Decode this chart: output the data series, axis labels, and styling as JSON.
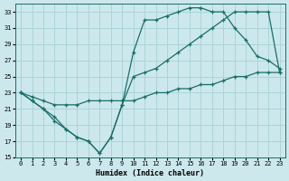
{
  "bg_color": "#cce8ec",
  "line_color": "#1a6e68",
  "grid_color": "#aad4d8",
  "xlabel": "Humidex (Indice chaleur)",
  "xlim": [
    -0.5,
    23.5
  ],
  "ylim": [
    15,
    34
  ],
  "xticks": [
    0,
    1,
    2,
    3,
    4,
    5,
    6,
    7,
    8,
    9,
    10,
    11,
    12,
    13,
    14,
    15,
    16,
    17,
    18,
    19,
    20,
    21,
    22,
    23
  ],
  "yticks": [
    15,
    17,
    19,
    21,
    23,
    25,
    27,
    29,
    31,
    33
  ],
  "curve1_x": [
    0,
    1,
    2,
    3,
    4,
    5,
    6,
    7,
    8,
    9,
    10,
    11,
    12,
    13,
    14,
    15,
    16,
    17,
    18,
    19,
    20,
    21,
    22,
    23
  ],
  "curve1_y": [
    23,
    22,
    21,
    20,
    18.5,
    17.5,
    17,
    15.5,
    17.5,
    21.5,
    25,
    25.5,
    26,
    27,
    28,
    29,
    30,
    31,
    32,
    33,
    33,
    33,
    33,
    25.5
  ],
  "curve2_x": [
    0,
    1,
    2,
    3,
    4,
    5,
    6,
    7,
    8,
    9,
    10,
    11,
    12,
    13,
    14,
    15,
    16,
    17,
    18,
    19,
    20,
    21,
    22,
    23
  ],
  "curve2_y": [
    23,
    22,
    21,
    19.5,
    18.5,
    17.5,
    17,
    15.5,
    17.5,
    21.5,
    28,
    32,
    32,
    32.5,
    33,
    33.5,
    33.5,
    33,
    33,
    31,
    29.5,
    27.5,
    27,
    26
  ],
  "curve3_x": [
    0,
    1,
    2,
    3,
    4,
    5,
    6,
    7,
    8,
    9,
    10,
    11,
    12,
    13,
    14,
    15,
    16,
    17,
    18,
    19,
    20,
    21,
    22,
    23
  ],
  "curve3_y": [
    23,
    22.5,
    22,
    21.5,
    21.5,
    21.5,
    22,
    22,
    22,
    22,
    22,
    22.5,
    23,
    23,
    23.5,
    23.5,
    24,
    24,
    24.5,
    25,
    25,
    25.5,
    25.5,
    25.5
  ]
}
